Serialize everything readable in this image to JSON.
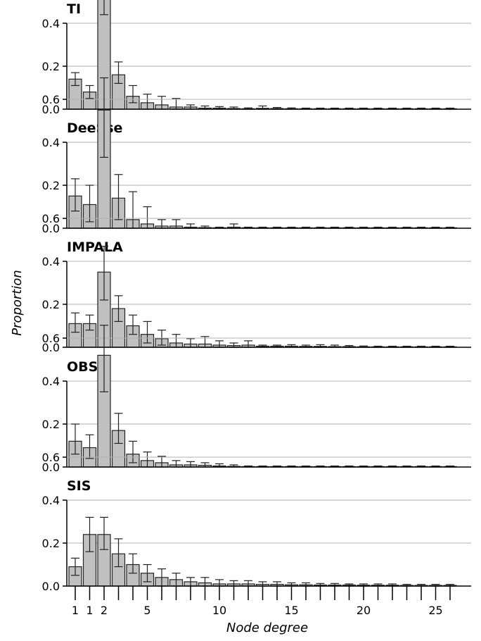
{
  "chart_data": {
    "type": "bar",
    "ylabel": "Proportion",
    "xlabel": "Node degree",
    "ylim": [
      0,
      0.7
    ],
    "yticks": [
      "0.0",
      "0.2",
      "0.4",
      "0.6"
    ],
    "xtick_labels": [
      "1",
      "1",
      "2",
      "5",
      "10",
      "15",
      "20",
      "25"
    ],
    "x": [
      1,
      2,
      3,
      4,
      5,
      6,
      7,
      8,
      9,
      10,
      11,
      12,
      13,
      14,
      15,
      16,
      17,
      18,
      19,
      20,
      21,
      22,
      23,
      24,
      25,
      26,
      27
    ],
    "bar_color": "#c0c0c0",
    "grid": true,
    "panels": [
      {
        "title": "TI",
        "values": [
          0.14,
          0.08,
          0.53,
          0.16,
          0.06,
          0.03,
          0.02,
          0.01,
          0.01,
          0.005,
          0.005,
          0.003,
          0.002,
          0.004,
          0.003,
          0.002,
          0.002,
          0.002,
          0.002,
          0.002,
          0.002,
          0.002,
          0.002,
          0.002,
          0.002,
          0.002,
          0.002
        ],
        "err_low": [
          0.11,
          0.05,
          0.44,
          0.12,
          0.03,
          0.0,
          0.0,
          0.0,
          0.0,
          0.0,
          0.0,
          0.0,
          0.0,
          0.0,
          0.0,
          0.0,
          0.0,
          0.0,
          0.0,
          0.0,
          0.0,
          0.0,
          0.0,
          0.0,
          0.0,
          0.0,
          0.0
        ],
        "err_high": [
          0.17,
          0.11,
          0.62,
          0.22,
          0.11,
          0.07,
          0.06,
          0.05,
          0.02,
          0.015,
          0.012,
          0.01,
          0.006,
          0.015,
          0.008,
          0.006,
          0.005,
          0.005,
          0.005,
          0.005,
          0.005,
          0.005,
          0.005,
          0.005,
          0.005,
          0.005,
          0.005
        ]
      },
      {
        "title": "DeeSse",
        "values": [
          0.15,
          0.11,
          0.55,
          0.14,
          0.04,
          0.02,
          0.01,
          0.01,
          0.005,
          0.003,
          0.002,
          0.005,
          0.002,
          0.002,
          0.002,
          0.002,
          0.002,
          0.002,
          0.002,
          0.002,
          0.002,
          0.002,
          0.002,
          0.002,
          0.002,
          0.002,
          0.002
        ],
        "err_low": [
          0.08,
          0.03,
          0.33,
          0.04,
          0.0,
          0.0,
          0.0,
          0.0,
          0.0,
          0.0,
          0.0,
          0.0,
          0.0,
          0.0,
          0.0,
          0.0,
          0.0,
          0.0,
          0.0,
          0.0,
          0.0,
          0.0,
          0.0,
          0.0,
          0.0,
          0.0,
          0.0
        ],
        "err_high": [
          0.23,
          0.2,
          0.7,
          0.25,
          0.17,
          0.1,
          0.04,
          0.04,
          0.02,
          0.01,
          0.005,
          0.02,
          0.005,
          0.005,
          0.005,
          0.005,
          0.005,
          0.005,
          0.005,
          0.005,
          0.005,
          0.005,
          0.005,
          0.005,
          0.005,
          0.005,
          0.005
        ]
      },
      {
        "title": "IMPALA",
        "values": [
          0.11,
          0.11,
          0.35,
          0.18,
          0.1,
          0.06,
          0.04,
          0.02,
          0.015,
          0.015,
          0.01,
          0.008,
          0.01,
          0.005,
          0.005,
          0.005,
          0.004,
          0.004,
          0.003,
          0.003,
          0.002,
          0.002,
          0.002,
          0.002,
          0.002,
          0.002,
          0.002
        ],
        "err_low": [
          0.07,
          0.08,
          0.22,
          0.12,
          0.06,
          0.02,
          0.01,
          0.0,
          0.0,
          0.0,
          0.0,
          0.0,
          0.0,
          0.0,
          0.0,
          0.0,
          0.0,
          0.0,
          0.0,
          0.0,
          0.0,
          0.0,
          0.0,
          0.0,
          0.0,
          0.0,
          0.0
        ],
        "err_high": [
          0.16,
          0.15,
          0.47,
          0.24,
          0.15,
          0.12,
          0.08,
          0.06,
          0.04,
          0.05,
          0.03,
          0.02,
          0.03,
          0.01,
          0.01,
          0.012,
          0.01,
          0.012,
          0.01,
          0.008,
          0.006,
          0.005,
          0.005,
          0.005,
          0.005,
          0.005,
          0.005
        ]
      },
      {
        "title": "OBS",
        "values": [
          0.12,
          0.09,
          0.52,
          0.17,
          0.06,
          0.03,
          0.02,
          0.01,
          0.01,
          0.008,
          0.005,
          0.003,
          0.002,
          0.002,
          0.002,
          0.002,
          0.002,
          0.002,
          0.002,
          0.002,
          0.002,
          0.002,
          0.002,
          0.002,
          0.002,
          0.002,
          0.002
        ],
        "err_low": [
          0.06,
          0.04,
          0.35,
          0.11,
          0.02,
          0.0,
          0.0,
          0.0,
          0.0,
          0.0,
          0.0,
          0.0,
          0.0,
          0.0,
          0.0,
          0.0,
          0.0,
          0.0,
          0.0,
          0.0,
          0.0,
          0.0,
          0.0,
          0.0,
          0.0,
          0.0,
          0.0
        ],
        "err_high": [
          0.2,
          0.15,
          0.66,
          0.25,
          0.12,
          0.07,
          0.05,
          0.03,
          0.025,
          0.02,
          0.015,
          0.01,
          0.005,
          0.005,
          0.005,
          0.005,
          0.005,
          0.005,
          0.005,
          0.005,
          0.005,
          0.005,
          0.005,
          0.005,
          0.005,
          0.005,
          0.005
        ]
      },
      {
        "title": "SIS",
        "values": [
          0.09,
          0.24,
          0.24,
          0.15,
          0.1,
          0.06,
          0.04,
          0.03,
          0.02,
          0.015,
          0.01,
          0.01,
          0.01,
          0.008,
          0.008,
          0.006,
          0.006,
          0.005,
          0.005,
          0.005,
          0.004,
          0.004,
          0.004,
          0.003,
          0.003,
          0.003,
          0.003
        ],
        "err_low": [
          0.05,
          0.16,
          0.17,
          0.09,
          0.06,
          0.02,
          0.0,
          0.0,
          0.0,
          0.0,
          0.0,
          0.0,
          0.0,
          0.0,
          0.0,
          0.0,
          0.0,
          0.0,
          0.0,
          0.0,
          0.0,
          0.0,
          0.0,
          0.0,
          0.0,
          0.0,
          0.0
        ],
        "err_high": [
          0.13,
          0.32,
          0.32,
          0.22,
          0.15,
          0.1,
          0.08,
          0.06,
          0.04,
          0.04,
          0.03,
          0.025,
          0.025,
          0.02,
          0.02,
          0.015,
          0.015,
          0.012,
          0.012,
          0.01,
          0.01,
          0.01,
          0.01,
          0.008,
          0.008,
          0.008,
          0.008
        ]
      }
    ]
  }
}
